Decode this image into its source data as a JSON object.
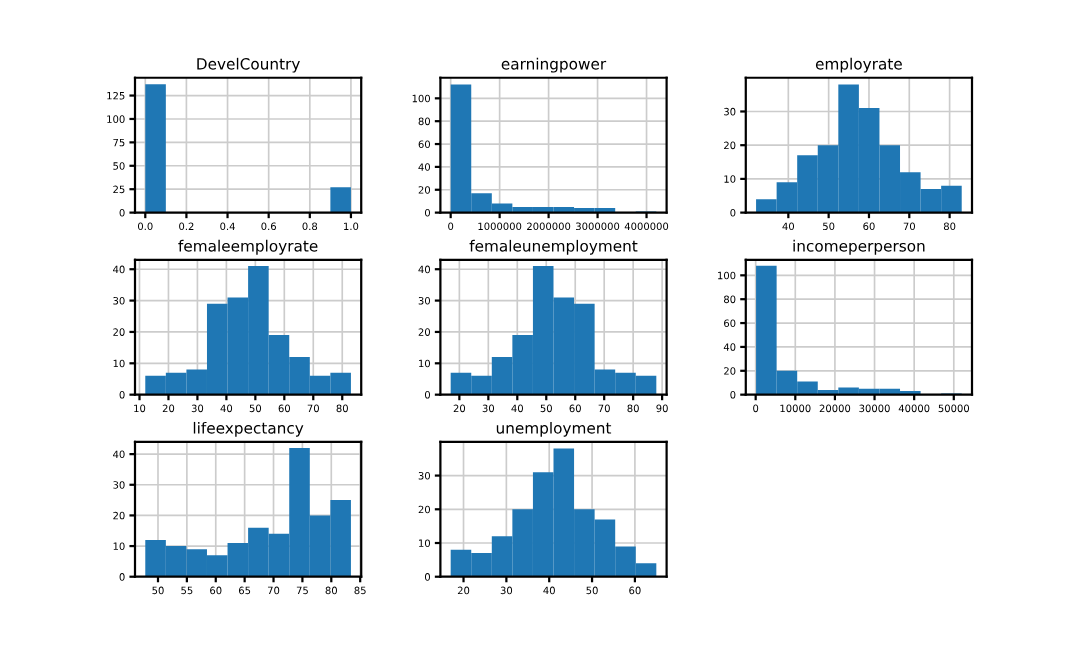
{
  "chart_data": [
    {
      "type": "histogram",
      "title": "DevelCountry",
      "color": "#1f77b4",
      "grid": true,
      "bins": [
        0,
        0.1,
        0.2,
        0.3,
        0.4,
        0.5,
        0.6,
        0.7,
        0.8,
        0.9,
        1.0
      ],
      "values": [
        137,
        0,
        0,
        0,
        0,
        0,
        0,
        0,
        0,
        27
      ],
      "xlim": [
        -0.05,
        1.05
      ],
      "ylim": [
        0,
        144
      ],
      "xticks": [
        {
          "value": 0,
          "label": "0.0"
        },
        0.2,
        0.4,
        0.6,
        0.8,
        {
          "value": 1,
          "label": "1.0"
        }
      ],
      "yticks": [
        0,
        25,
        50,
        75,
        100,
        125
      ]
    },
    {
      "type": "histogram",
      "title": "earningpower",
      "color": "#1f77b4",
      "grid": true,
      "bins": [
        0,
        420000,
        840000,
        1260000,
        1680000,
        2100000,
        2520000,
        2940000,
        3360000,
        3780000,
        4200000
      ],
      "values": [
        112,
        17,
        8,
        5,
        5,
        5,
        4,
        4,
        0,
        1
      ],
      "xlim": [
        -210000,
        4410000
      ],
      "ylim": [
        0,
        118
      ],
      "xticks": [
        0,
        1000000,
        2000000,
        3000000,
        4000000
      ],
      "yticks": [
        0,
        20,
        40,
        60,
        80,
        100
      ]
    },
    {
      "type": "histogram",
      "title": "employrate",
      "color": "#1f77b4",
      "grid": true,
      "bins": [
        32,
        37.1,
        42.2,
        47.3,
        52.4,
        57.5,
        62.6,
        67.7,
        72.8,
        77.9,
        83
      ],
      "values": [
        4,
        9,
        17,
        20,
        38,
        31,
        20,
        12,
        7,
        8
      ],
      "xlim": [
        29.45,
        85.55
      ],
      "ylim": [
        0,
        40
      ],
      "xticks": [
        40,
        50,
        60,
        70,
        80
      ],
      "yticks": [
        0,
        10,
        20,
        30
      ]
    },
    {
      "type": "histogram",
      "title": "femaleemployrate",
      "color": "#1f77b4",
      "grid": true,
      "bins": [
        12,
        19.1,
        26.2,
        33.3,
        40.4,
        47.5,
        54.6,
        61.7,
        68.8,
        75.9,
        83
      ],
      "values": [
        6,
        7,
        8,
        29,
        31,
        41,
        19,
        12,
        6,
        7
      ],
      "xlim": [
        8.45,
        86.55
      ],
      "ylim": [
        0,
        43
      ],
      "xticks": [
        10,
        20,
        30,
        40,
        50,
        60,
        70,
        80
      ],
      "yticks": [
        0,
        10,
        20,
        30,
        40
      ]
    },
    {
      "type": "histogram",
      "title": "femaleunemployment",
      "color": "#1f77b4",
      "grid": true,
      "bins": [
        17,
        24.1,
        31.2,
        38.3,
        45.4,
        52.5,
        59.6,
        66.7,
        73.8,
        80.9,
        88
      ],
      "values": [
        7,
        6,
        12,
        19,
        41,
        31,
        29,
        8,
        7,
        6
      ],
      "xlim": [
        13.45,
        91.55
      ],
      "ylim": [
        0,
        43
      ],
      "xticks": [
        20,
        30,
        40,
        50,
        60,
        70,
        80,
        90
      ],
      "yticks": [
        0,
        10,
        20,
        30,
        40
      ]
    },
    {
      "type": "histogram",
      "title": "incomeperperson",
      "color": "#1f77b4",
      "grid": true,
      "bins": [
        100,
        5290,
        10480,
        15670,
        20860,
        26050,
        31240,
        36430,
        41620,
        46810,
        52000
      ],
      "values": [
        108,
        20,
        11,
        4,
        6,
        5,
        5,
        3,
        0,
        1
      ],
      "xlim": [
        -2495,
        54595
      ],
      "ylim": [
        0,
        113
      ],
      "xticks": [
        0,
        10000,
        20000,
        30000,
        40000,
        50000
      ],
      "yticks": [
        0,
        20,
        40,
        60,
        80,
        100
      ]
    },
    {
      "type": "histogram",
      "title": "lifeexpectancy",
      "color": "#1f77b4",
      "grid": true,
      "bins": [
        47.8,
        51.36,
        54.92,
        58.48,
        62.04,
        65.6,
        69.16,
        72.72,
        76.28,
        79.84,
        83.4
      ],
      "values": [
        12,
        10,
        9,
        7,
        11,
        16,
        14,
        42,
        20,
        25
      ],
      "xlim": [
        46.02,
        85.18
      ],
      "ylim": [
        0,
        44
      ],
      "xticks": [
        50,
        55,
        60,
        65,
        70,
        75,
        80,
        85
      ],
      "yticks": [
        0,
        10,
        20,
        30,
        40
      ]
    },
    {
      "type": "histogram",
      "title": "unemployment",
      "color": "#1f77b4",
      "grid": true,
      "bins": [
        17,
        21.8,
        26.6,
        31.4,
        36.2,
        41,
        45.8,
        50.6,
        55.4,
        60.2,
        65
      ],
      "values": [
        8,
        7,
        12,
        20,
        31,
        38,
        20,
        17,
        9,
        4
      ],
      "xlim": [
        14.6,
        67.4
      ],
      "ylim": [
        0,
        40
      ],
      "xticks": [
        20,
        30,
        40,
        50,
        60
      ],
      "yticks": [
        0,
        10,
        20,
        30
      ]
    }
  ]
}
